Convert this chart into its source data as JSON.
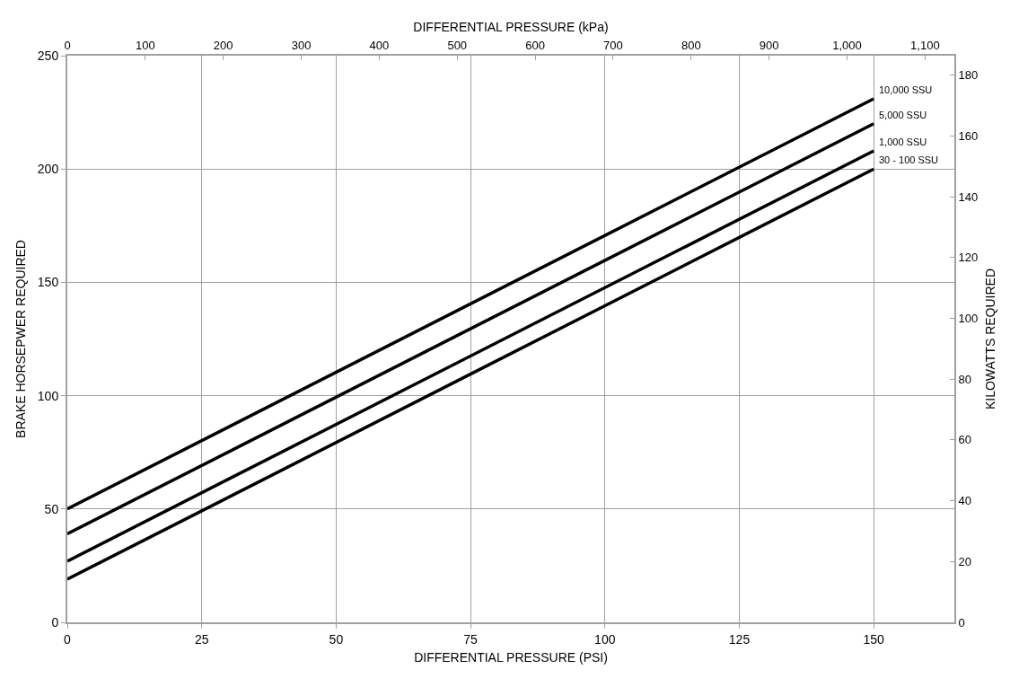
{
  "chart_data": {
    "type": "line",
    "xlabel": "DIFFERENTIAL PRESSURE (PSI)",
    "ylabel": "BRAKE HORSEPWER REQUIRED",
    "y2label": "KILOWATTS REQUIRED",
    "x2label": "DIFFERENTIAL PRESSURE (kPa)",
    "x": [
      0,
      150
    ],
    "series": [
      {
        "name": "10,000 SSU",
        "color": "#000000",
        "values": [
          50,
          231
        ]
      },
      {
        "name": "5,000 SSU",
        "color": "#000000",
        "values": [
          39,
          220
        ]
      },
      {
        "name": "1,000 SSU",
        "color": "#000000",
        "values": [
          27,
          208
        ]
      },
      {
        "name": "30 - 100 SSU",
        "color": "#000000",
        "values": [
          19,
          200
        ]
      }
    ],
    "xlim": [
      0,
      165
    ],
    "xticks": [
      0,
      25,
      50,
      75,
      100,
      125,
      150
    ],
    "ylim": [
      0,
      250
    ],
    "yticks": [
      0,
      50,
      100,
      150,
      200,
      250
    ],
    "x2lim": [
      0,
      1137.6
    ],
    "x2ticks": [
      0,
      100,
      200,
      300,
      400,
      500,
      600,
      700,
      800,
      900,
      {
        "value": 1000,
        "label": "1,000"
      },
      {
        "value": 1100,
        "label": "1,100"
      }
    ],
    "y2lim": [
      0,
      186.4
    ],
    "y2ticks": [
      0,
      20,
      40,
      60,
      80,
      100,
      120,
      140,
      160,
      180
    ],
    "grid": true,
    "legend": false,
    "marker": "none",
    "line_style": "solid"
  }
}
